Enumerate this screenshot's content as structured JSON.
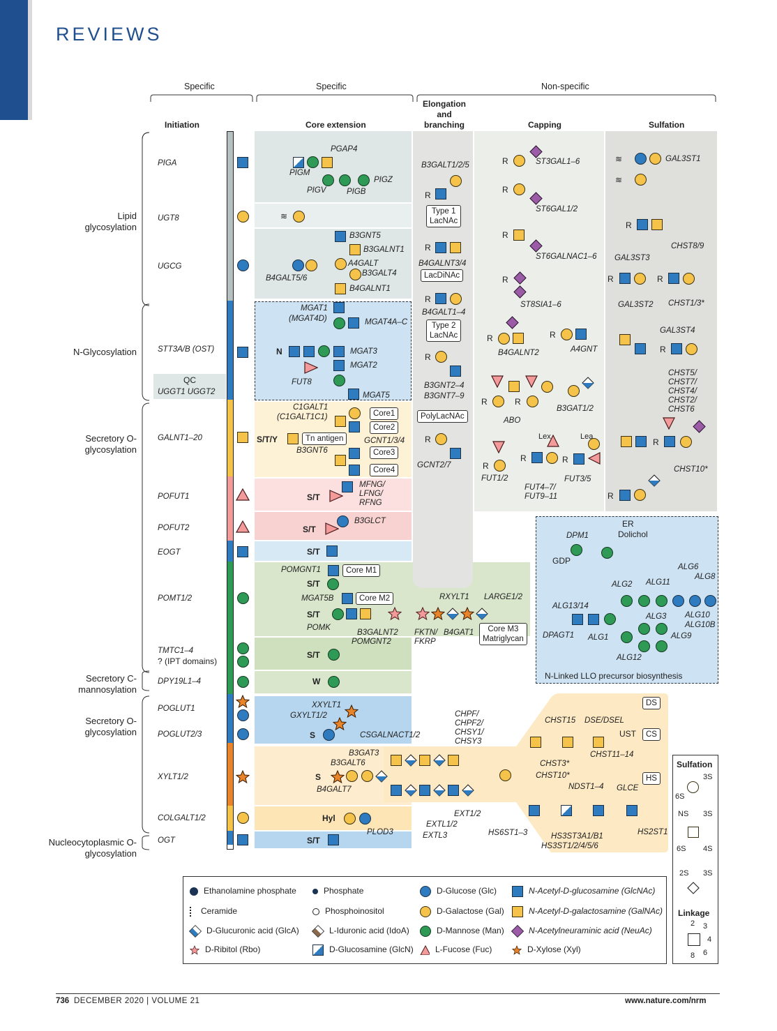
{
  "header": {
    "section": "REVIEWS"
  },
  "footer": {
    "page": "736",
    "issue": "DECEMBER 2020 | VOLUME 21",
    "url": "www.nature.com/nrm"
  },
  "columns": {
    "specific1": "Specific",
    "specific2": "Specific",
    "nonspecific": "Non-specific",
    "initiation": "Initiation",
    "core_extension": "Core extension",
    "elongation": "Elongation and branching",
    "capping": "Capping",
    "sulfation": "Sulfation"
  },
  "categories": [
    {
      "label": "Lipid glycosylation"
    },
    {
      "label": "N-Glycosylation"
    },
    {
      "label": "Secretory O-glycosylation"
    },
    {
      "label": "Secretory C-mannosylation"
    },
    {
      "label": "Secretory O-glycosylation"
    },
    {
      "label": "Nucleocytoplasmic O-glycosylation"
    }
  ],
  "initiation_enzymes": [
    "PIGA",
    "UGT8",
    "UGCG",
    "STT3A/B (OST)",
    "GALNT1–20",
    "POFUT1",
    "POFUT2",
    "EOGT",
    "POMT1/2",
    "TMTC1–4",
    "? (IPT domains)",
    "DPY19L1–4",
    "POGLUT1",
    "POGLUT2/3",
    "XYLT1/2",
    "COLGALT1/2",
    "OGT"
  ],
  "qc": {
    "title": "QC",
    "enzymes": "UGGT1   UGGT2"
  },
  "core": {
    "gpi": [
      "PGAP4",
      "PIGM",
      "PIGV",
      "PIGB",
      "PIGZ"
    ],
    "gsl": [
      "B3GNT5",
      "B3GALNT1",
      "A4GALT",
      "B3GALT4",
      "B4GALNT1",
      "B4GALT5/6"
    ],
    "nglyc": [
      "MGAT1",
      "(MGAT4D)",
      "MGAT4A–C",
      "MGAT3",
      "MGAT2",
      "FUT8",
      "MGAT5"
    ],
    "ogalnac": [
      "C1GALT1",
      "(C1GALT1C1)",
      "B3GNT6",
      "GCNT1/3/4",
      "Tn antigen",
      "Core1",
      "Core2",
      "Core3",
      "Core4"
    ],
    "fuc": [
      "MFNG/",
      "LFNG/",
      "RFNG",
      "B3GLCT"
    ],
    "man": [
      "POMGNT1",
      "Core M1",
      "MGAT5B",
      "Core M2",
      "POMK",
      "B3GALNT2",
      "POMGNT2",
      "RXYLT1",
      "FKTN/",
      "FKRP",
      "B4GAT1",
      "LARGE1/2",
      "Core M3",
      "Matriglycan"
    ],
    "xyl": [
      "XXYLT1",
      "GXYLT1/2"
    ],
    "gag": [
      "B3GAT3",
      "B3GALT6",
      "B4GALT7",
      "CSGALNACT1/2",
      "CHPF/",
      "CHPF2/",
      "CHSY1/",
      "CHSY3",
      "EXT1/2",
      "EXTL1/2",
      "EXTL3"
    ],
    "hyl": [
      "PLOD3"
    ]
  },
  "elongation": [
    "B3GALT1/2/5",
    "Type 1",
    "LacNAc",
    "B4GALNT3/4",
    "LacDiNAc",
    "B4GALT1–4",
    "Type 2",
    "LacNAc",
    "B3GNT2–4",
    "B3GNT7–9",
    "PolyLacNAc",
    "GCNT2/7"
  ],
  "capping": [
    "ST3GAL1–6",
    "ST6GAL1/2",
    "ST6GALNAC1–6",
    "ST8SIA1–6",
    "B4GALNT2",
    "A4GNT",
    "ABO",
    "B3GAT1/2",
    "FUT1/2",
    "Lex",
    "Lea",
    "FUT4–7/",
    "FUT9–11",
    "FUT3/5"
  ],
  "sulfation": [
    "GAL3ST1",
    "CHST8/9",
    "GAL3ST3",
    "GAL3ST2",
    "CHST1/3*",
    "GAL3ST4",
    "CHST5/",
    "CHST7/",
    "CHST4/",
    "CHST2/",
    "CHST6",
    "CHST10*"
  ],
  "er": {
    "title": "ER",
    "dolichol": "Dolichol",
    "dpm1": "DPM1",
    "gdp": "GDP",
    "labels": [
      "ALG6",
      "ALG8",
      "ALG2",
      "ALG11",
      "ALG13/14",
      "ALG10",
      "ALG10B",
      "ALG3",
      "DPAGT1",
      "ALG1",
      "ALG9",
      "ALG12"
    ],
    "caption": "N-Linked LLO precursor biosynthesis"
  },
  "gag_panel": {
    "labels": [
      "CHST15",
      "DSE/DSEL",
      "UST",
      "CHST3*",
      "CHST10*",
      "CHST11–14",
      "NDST1–4",
      "GLCE",
      "HS6ST1–3",
      "HS3ST3A1/B1",
      "HS3ST1/2/4/5/6",
      "HS2ST1"
    ],
    "boxes": [
      "DS",
      "CS",
      "HS"
    ]
  },
  "sulfation_key": {
    "title": "Sulfation",
    "linkage": "Linkage",
    "labels": [
      "3S",
      "6S",
      "NS",
      "3S",
      "6S",
      "4S",
      "2S",
      "3S"
    ],
    "linkage_nums": [
      "2",
      "3",
      "4",
      "6",
      "8"
    ]
  },
  "legend": [
    {
      "label": "Ethanolamine phosphate",
      "icon": "ethanolamine-phosphate"
    },
    {
      "label": "Phosphate",
      "icon": "phosphate"
    },
    {
      "label": "D-Glucose (Glc)",
      "icon": "glucose"
    },
    {
      "label": "N-Acetyl-D-glucosamine (GlcNAc)",
      "icon": "glcnac"
    },
    {
      "label": "Ceramide",
      "icon": "ceramide"
    },
    {
      "label": "Phosphoinositol",
      "icon": "phosphoinositol"
    },
    {
      "label": "D-Galactose (Gal)",
      "icon": "galactose"
    },
    {
      "label": "N-Acetyl-D-galactosamine (GalNAc)",
      "icon": "galnac"
    },
    {
      "label": "D-Glucuronic acid (GlcA)",
      "icon": "glca"
    },
    {
      "label": "L-Iduronic acid (IdoA)",
      "icon": "idoa"
    },
    {
      "label": "D-Mannose (Man)",
      "icon": "mannose"
    },
    {
      "label": "N-Acetylneuraminic acid (NeuAc)",
      "icon": "neuac"
    },
    {
      "label": "D-Ribitol (Rbo)",
      "icon": "ribitol"
    },
    {
      "label": "D-Glucosamine (GlcN)",
      "icon": "glcn"
    },
    {
      "label": "L-Fucose (Fuc)",
      "icon": "fucose"
    },
    {
      "label": "D-Xylose (Xyl)",
      "icon": "xylose"
    }
  ],
  "colors": {
    "brand": "#1f4f8f",
    "glcnac": "#2e7cbf",
    "gal": "#f5c24a",
    "man": "#2f9a55",
    "neuac": "#9b5ba6",
    "fuc": "#f39a9a",
    "xyl": "#e8842a"
  }
}
